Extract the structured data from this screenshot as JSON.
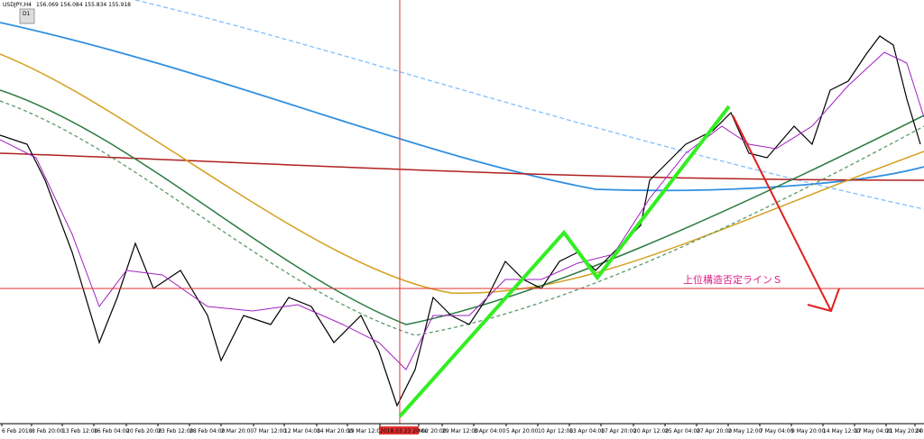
{
  "header": {
    "symbol": "USDJPY,H4",
    "quote": "156.069 156.084 155.834 155.918",
    "badge": "D1"
  },
  "annotation": "上位構造否定ラインＳ",
  "x_labels": [
    "6 Feb 2018",
    "8 Feb 20:00",
    "13 Feb 12:00",
    "16 Feb 04:00",
    "20 Feb 20:00",
    "23 Feb 12:00",
    "28 Feb 04:00",
    "2 Mar 20:00",
    "7 Mar 12:00",
    "12 Mar 04:00",
    "14 Mar 20:00",
    "19 Mar 12:00",
    "2018.03.23 20:00",
    "Mar 20:00",
    "29 Mar 12:00",
    "3 Apr 04:00",
    "5 Apr 20:00",
    "10 Apr 12:00",
    "13 Apr 04:00",
    "17 Apr 20:00",
    "20 Apr 12:00",
    "25 Apr 04:00",
    "27 Apr 20:00",
    "2 May 12:00",
    "7 May 04:00",
    "9 May 20:00",
    "14 May 12:00",
    "17 May 04:00",
    "21 May 20:00",
    "24"
  ]
}
